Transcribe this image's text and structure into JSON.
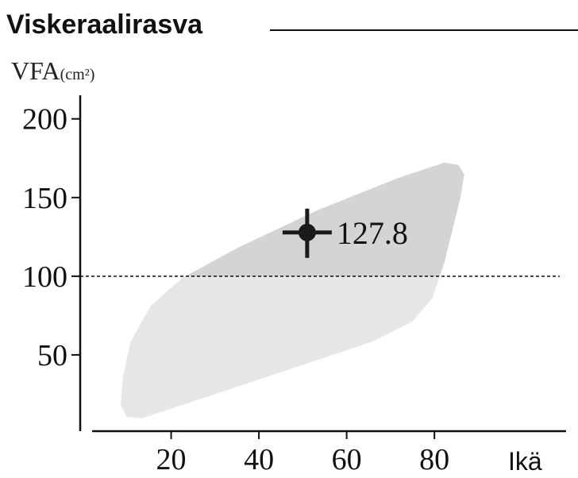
{
  "chart_data": {
    "type": "scatter",
    "title": "Viskeraalirasva",
    "y_label": "VFA",
    "y_unit": "(cm²)",
    "x_label": "Ikä",
    "xlim": [
      0,
      110
    ],
    "ylim": [
      0,
      215
    ],
    "xticks": [
      20,
      40,
      60,
      80
    ],
    "yticks": [
      50,
      100,
      150,
      200
    ],
    "reference_line": 100,
    "region": {
      "colors": [
        "#d4d4d4",
        "#e6e6e6"
      ],
      "x": [
        8.5,
        9.9,
        13.2,
        38.9,
        66.0,
        75.0,
        79.6,
        82.3,
        85.9,
        86.8,
        85.5,
        82.3,
        71.4,
        53.3,
        35.3,
        22.6,
        15.4,
        10.8,
        9.0
      ],
      "y": [
        18.2,
        10.6,
        9.6,
        33.3,
        58.6,
        71.2,
        86.4,
        109.1,
        149.5,
        164.6,
        170.7,
        172.2,
        162.1,
        141.9,
        118.2,
        99.0,
        81.3,
        58.6,
        35.9
      ]
    },
    "series": [
      {
        "color": "#1a1a1a",
        "x": [
          51
        ],
        "values": [
          127.8
        ]
      }
    ]
  }
}
